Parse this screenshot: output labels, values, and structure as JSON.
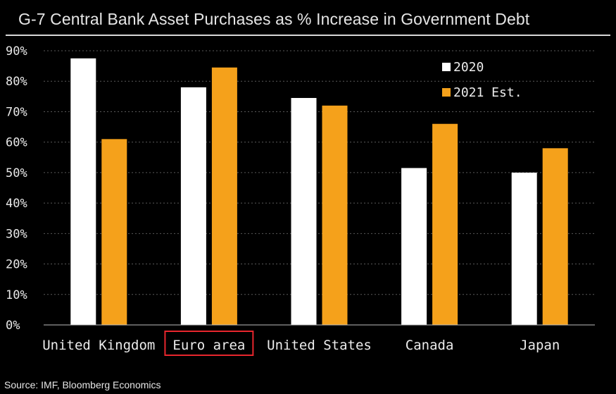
{
  "title": "G-7 Central Bank Asset Purchases as % Increase in Government Debt",
  "source": "Source: IMF, Bloomberg Economics",
  "colors": {
    "background": "#000000",
    "series_2020": "#ffffff",
    "series_2021": "#f5a11b",
    "grid": "#5a5a5a",
    "highlight_box": "#e8262d"
  },
  "highlighted_category": "Euro area",
  "chart_data": {
    "type": "bar",
    "title": "G-7 Central Bank Asset Purchases as % Increase in Government Debt",
    "xlabel": "",
    "ylabel": "",
    "categories": [
      "United Kingdom",
      "Euro area",
      "United States",
      "Canada",
      "Japan"
    ],
    "series": [
      {
        "name": "2020",
        "values": [
          87.5,
          78,
          74.5,
          51.5,
          50
        ]
      },
      {
        "name": "2021 Est.",
        "values": [
          61,
          84.5,
          72,
          66,
          58
        ]
      }
    ],
    "ylim": [
      0,
      90
    ],
    "yticks": [
      0,
      10,
      20,
      30,
      40,
      50,
      60,
      70,
      80,
      90
    ],
    "ytick_labels": [
      "0%",
      "10%",
      "20%",
      "30%",
      "40%",
      "50%",
      "60%",
      "70%",
      "80%",
      "90%"
    ],
    "grid": true,
    "legend_position": "top-right"
  }
}
